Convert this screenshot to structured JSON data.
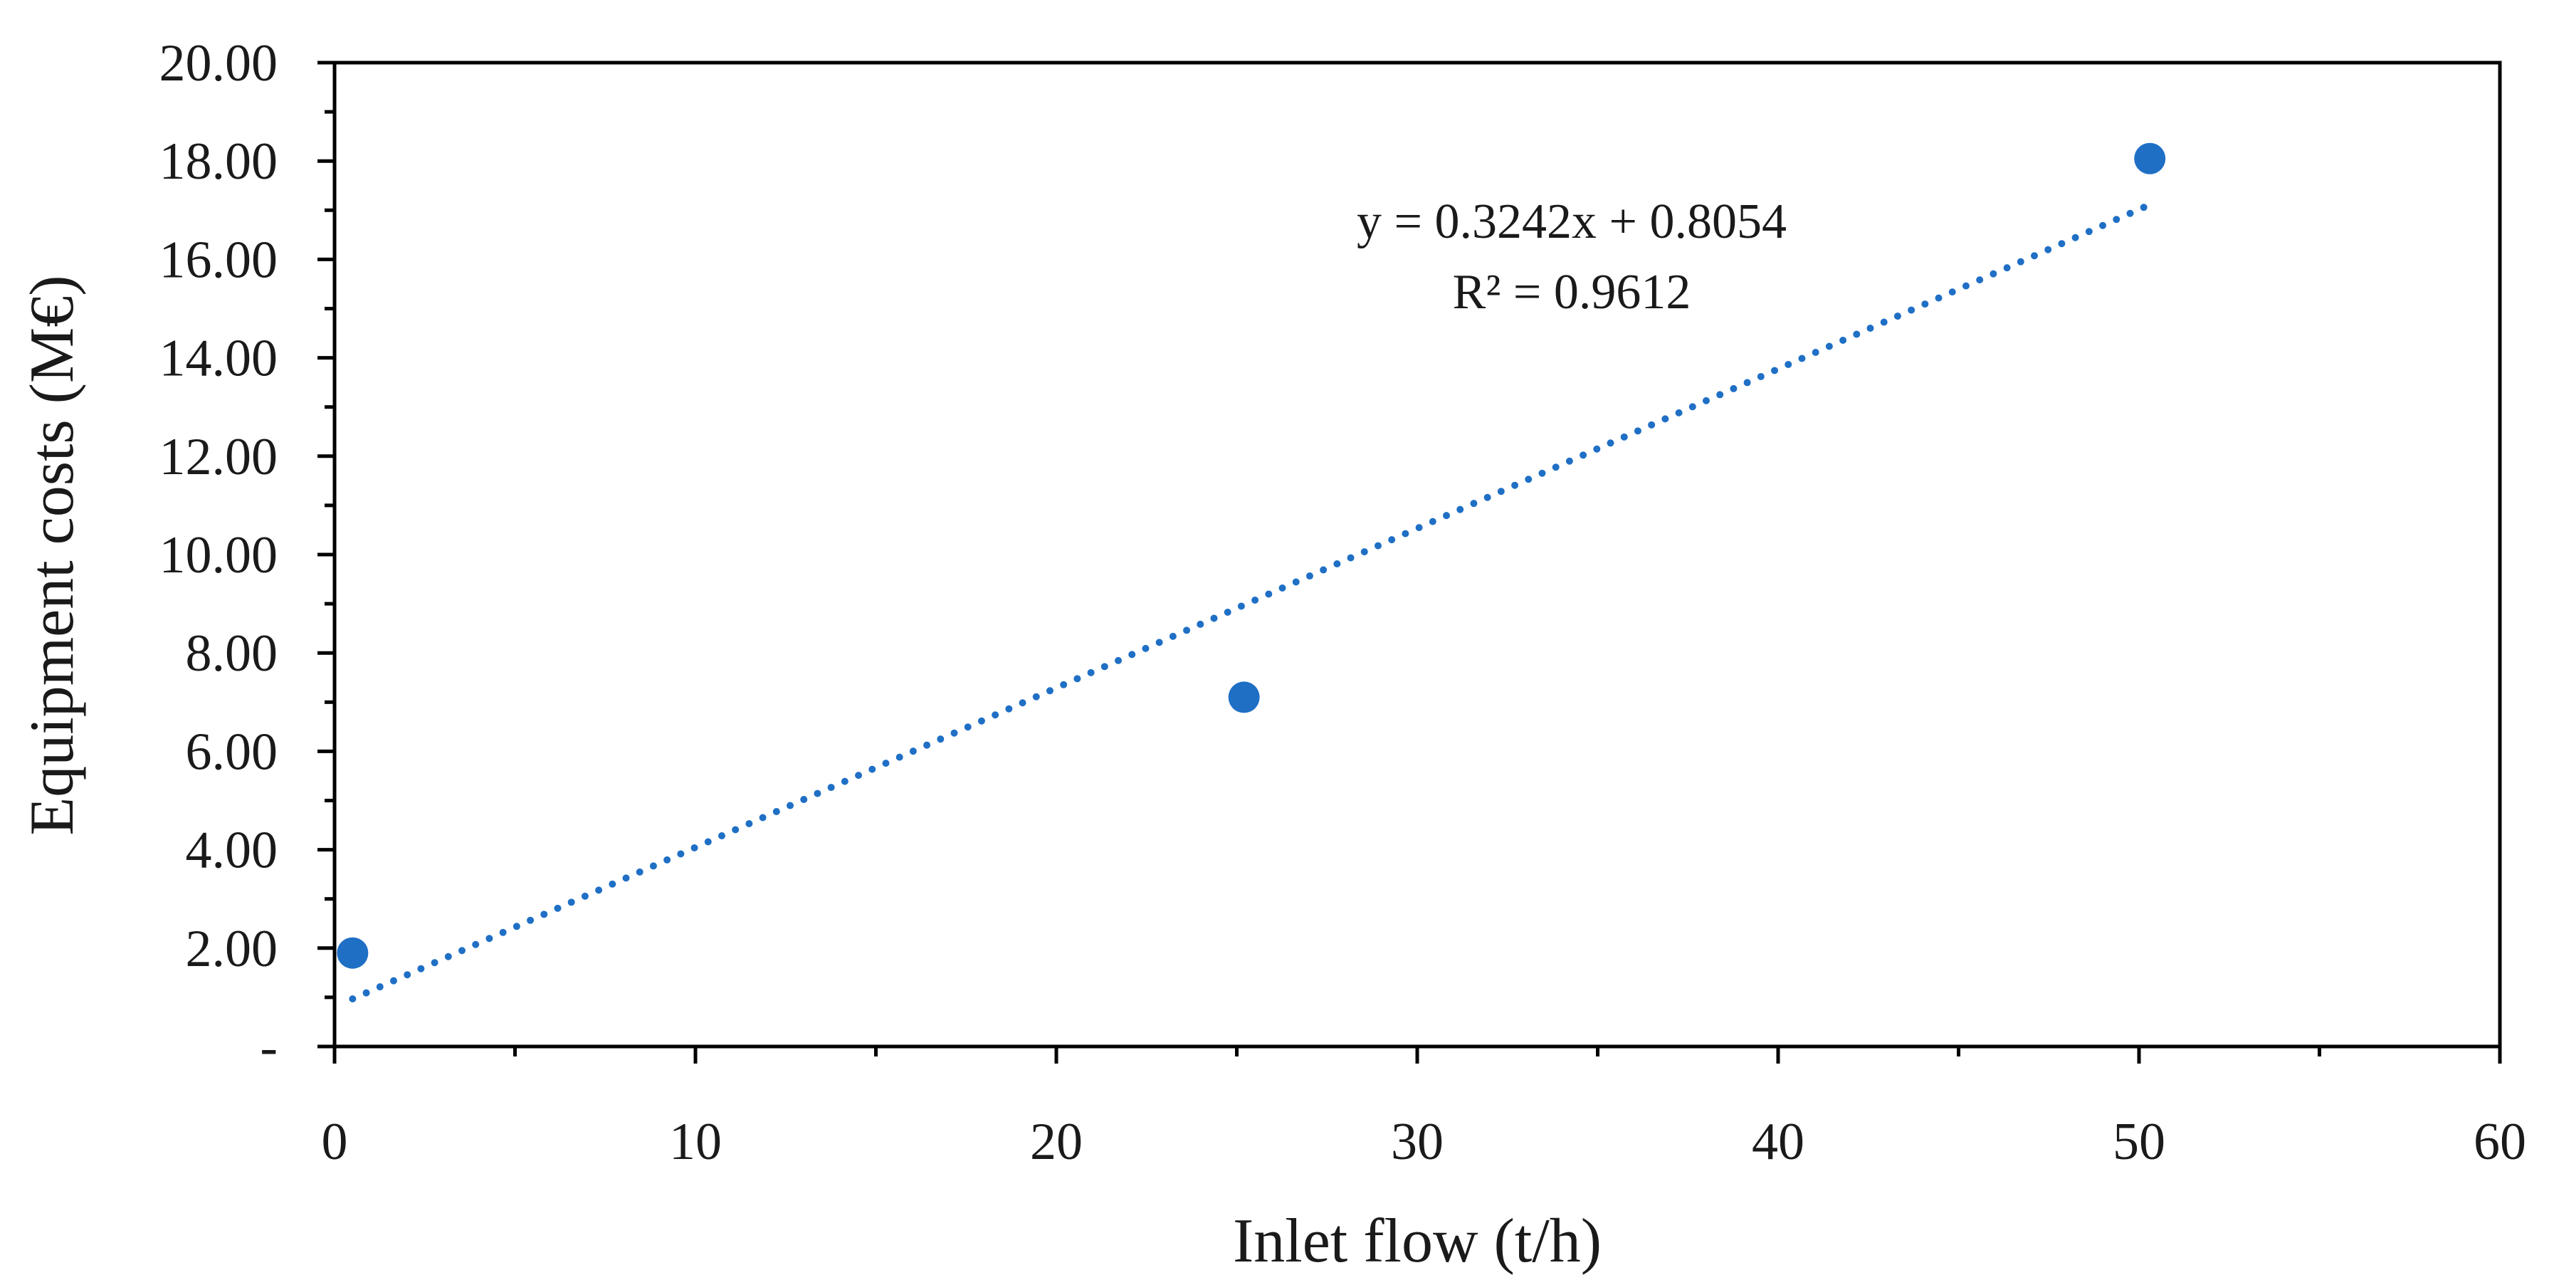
{
  "chart_data": {
    "type": "scatter",
    "title": "",
    "xlabel": "Inlet flow (t/h)",
    "ylabel": "Equipment costs (M€)",
    "xlim": [
      0,
      60
    ],
    "ylim": [
      0,
      20
    ],
    "x_major_step": 10,
    "x_minor_step": 5,
    "y_major_step": 2,
    "y_minor_step": 1,
    "x_tick_labels": [
      "0",
      "10",
      "20",
      "30",
      "40",
      "50",
      "60"
    ],
    "y_tick_labels": [
      "-",
      "2.00",
      "4.00",
      "6.00",
      "8.00",
      "10.00",
      "12.00",
      "14.00",
      "16.00",
      "18.00",
      "20.00"
    ],
    "grid": false,
    "legend": "none",
    "series": [
      {
        "name": "Equipment costs",
        "color": "#1f6fc5",
        "x": [
          0.5,
          25.2,
          50.3
        ],
        "y": [
          1.9,
          7.1,
          18.05
        ]
      }
    ],
    "trendline": {
      "type": "linear",
      "style": "dotted",
      "color": "#1f6fc5",
      "slope": 0.3242,
      "intercept": 0.8054,
      "x_range": [
        0.5,
        50.3
      ],
      "equation_label": "y = 0.3242x + 0.8054",
      "r2_label": "R² = 0.9612"
    }
  }
}
